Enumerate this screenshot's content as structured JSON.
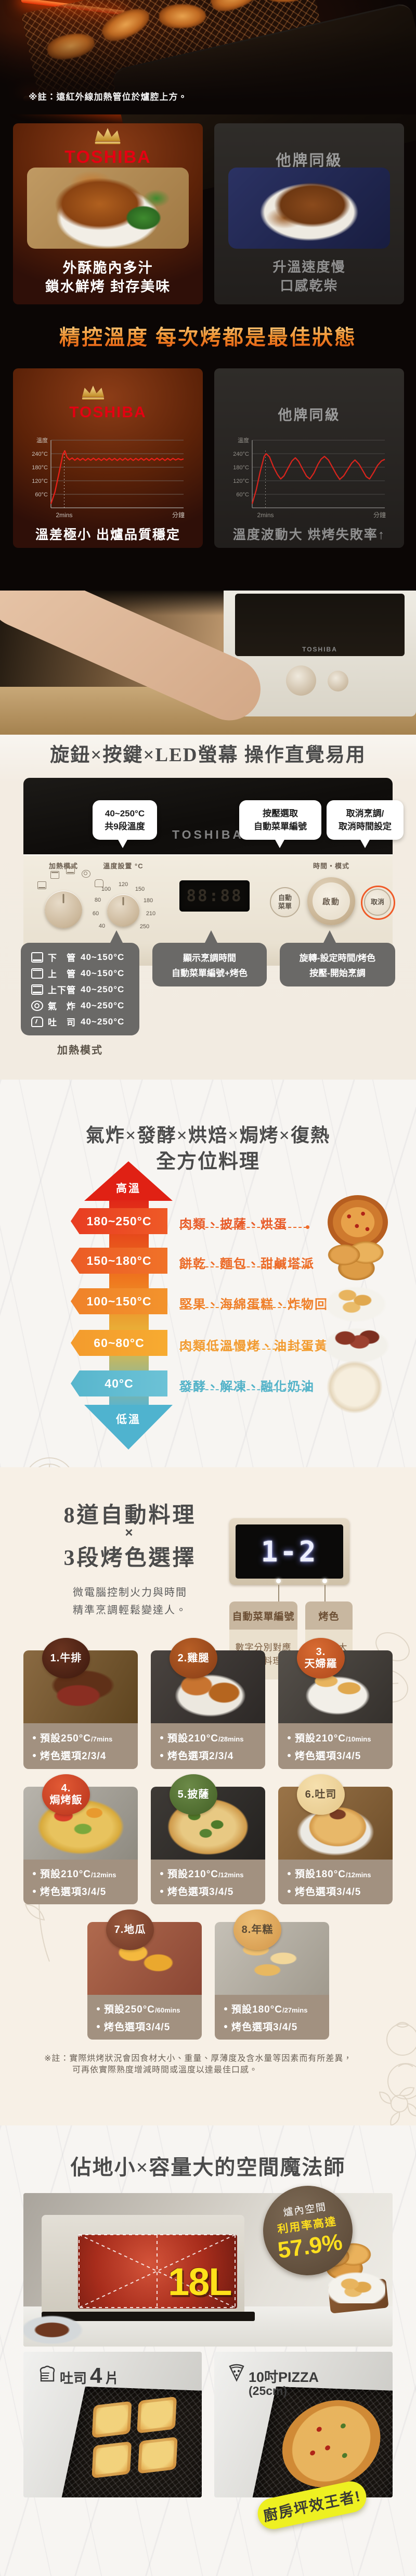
{
  "hero": {
    "note": "※註：遠紅外線加熱管位於爐腔上方。"
  },
  "compare_cook": {
    "left_brand": "TOSHIBA",
    "left_line1": "外酥脆內多汁",
    "left_line2": "鎖水鮮烤 封存美味",
    "right_brand": "他牌同級",
    "right_line1": "升溫速度慢",
    "right_line2": "口感乾柴"
  },
  "temp_heading": "精控溫度 每次烤都是最佳狀態",
  "compare_temp": {
    "left_brand": "TOSHIBA",
    "left_caption": "溫差極小 出爐品質穩定",
    "right_brand": "他牌同級",
    "right_caption": "溫度波動大 烘烤失敗率↑"
  },
  "chart_data": [
    {
      "type": "line",
      "title": "TOSHIBA爐內溫度曲線",
      "ylabel": "溫度",
      "xlabel": "分鐘",
      "x_marker": "2mins",
      "y_ticks": [
        240,
        180,
        120,
        60
      ],
      "ylim": [
        0,
        300
      ],
      "xlim": [
        0,
        20
      ],
      "annotation": "溫差極小 出爐品質穩定",
      "series": [
        {
          "name": "爐內溫度",
          "color": "#e82019",
          "points": [
            [
              0,
              18
            ],
            [
              0.6,
              70
            ],
            [
              1.2,
              152
            ],
            [
              1.8,
              238
            ],
            [
              2.1,
              253
            ],
            [
              2.4,
              226
            ],
            [
              2.8,
              213
            ],
            [
              3.2,
              221
            ],
            [
              3.6,
              211
            ],
            [
              4,
              220
            ],
            [
              4.4,
              211
            ],
            [
              4.8,
              219
            ],
            [
              5.2,
              210
            ],
            [
              5.6,
              219
            ],
            [
              6,
              211
            ],
            [
              6.4,
              220
            ],
            [
              6.8,
              211
            ],
            [
              7.2,
              219
            ],
            [
              7.6,
              210
            ],
            [
              8,
              219
            ],
            [
              8.4,
              211
            ],
            [
              8.8,
              220
            ],
            [
              9.2,
              211
            ],
            [
              9.6,
              219
            ],
            [
              10,
              210
            ],
            [
              10.4,
              219
            ],
            [
              10.8,
              211
            ],
            [
              11.2,
              220
            ],
            [
              11.6,
              211
            ],
            [
              12,
              219
            ],
            [
              12.4,
              210
            ],
            [
              12.8,
              219
            ],
            [
              13.2,
              211
            ],
            [
              13.6,
              220
            ],
            [
              14,
              211
            ],
            [
              14.4,
              219
            ],
            [
              14.8,
              210
            ],
            [
              15.2,
              219
            ],
            [
              15.6,
              211
            ],
            [
              16,
              220
            ],
            [
              16.4,
              211
            ],
            [
              16.8,
              219
            ],
            [
              17.2,
              210
            ],
            [
              17.6,
              219
            ],
            [
              18,
              211
            ],
            [
              18.4,
              219
            ],
            [
              18.8,
              212
            ],
            [
              19.2,
              218
            ],
            [
              19.6,
              213
            ],
            [
              20,
              217
            ]
          ]
        }
      ]
    },
    {
      "type": "line",
      "title": "他牌同級爐內溫度曲線",
      "ylabel": "溫度",
      "xlabel": "分鐘",
      "x_marker": "2mins",
      "y_ticks": [
        240,
        180,
        120,
        60
      ],
      "ylim": [
        0,
        300
      ],
      "xlim": [
        0,
        20
      ],
      "annotation": "溫度波動大 烘烤失敗率↑",
      "series": [
        {
          "name": "爐內溫度",
          "color": "#d8241d",
          "points": [
            [
              0,
              18
            ],
            [
              0.6,
              78
            ],
            [
              1.2,
              160
            ],
            [
              1.8,
              228
            ],
            [
              2.1,
              240
            ],
            [
              2.6,
              226
            ],
            [
              3.2,
              182
            ],
            [
              3.8,
              148
            ],
            [
              4.3,
              128
            ],
            [
              4.8,
              142
            ],
            [
              5.4,
              176
            ],
            [
              6,
              208
            ],
            [
              6.5,
              222
            ],
            [
              7,
              206
            ],
            [
              7.6,
              172
            ],
            [
              8.2,
              140
            ],
            [
              8.7,
              128
            ],
            [
              9.3,
              154
            ],
            [
              9.9,
              192
            ],
            [
              10.4,
              216
            ],
            [
              10.9,
              228
            ],
            [
              11.5,
              212
            ],
            [
              12.1,
              180
            ],
            [
              12.7,
              148
            ],
            [
              13.2,
              126
            ],
            [
              13.8,
              142
            ],
            [
              14.4,
              170
            ],
            [
              15,
              198
            ],
            [
              15.5,
              212
            ],
            [
              16.1,
              194
            ],
            [
              16.7,
              164
            ],
            [
              17.2,
              138
            ],
            [
              17.7,
              128
            ],
            [
              18.3,
              156
            ],
            [
              18.9,
              188
            ],
            [
              19.5,
              208
            ],
            [
              20,
              215
            ]
          ]
        }
      ]
    }
  ],
  "panel_section": {
    "heading": "旋鈕×按鍵×LED螢幕 操作直覺易用",
    "bubble1": [
      "40~250°C",
      "共9段溫度"
    ],
    "bubble2": [
      "按壓選取",
      "自動菜單編號"
    ],
    "bubble3": [
      "取消烹調/",
      "取消時間設定"
    ],
    "brand": "TOSHIBA",
    "knob1_label": "加熱模式",
    "knob2_label": "溫度設置 °C",
    "ticks": [
      "40",
      "60",
      "80",
      "100",
      "120",
      "150",
      "180",
      "210",
      "250"
    ],
    "display": "88:88",
    "auto1": "自動",
    "auto2": "菜單",
    "big_knob_label": "時間・模式",
    "start": "啟動",
    "cancel": "取消",
    "crumb": "▼ 集屑盤"
  },
  "mode_box": {
    "modes": [
      {
        "name": "下　管",
        "range": "40~150°C"
      },
      {
        "name": "上　管",
        "range": "40~150°C"
      },
      {
        "name": "上下管",
        "range": "40~250°C"
      },
      {
        "name": "氣　炸",
        "range": "40~250°C"
      },
      {
        "name": "吐　司",
        "range": "40~250°C"
      }
    ],
    "label": "加熱模式",
    "display_box": [
      "顯示烹調時間",
      "自動菜單編號+烤色"
    ],
    "knob_box": [
      "旋轉-設定時間/烤色",
      "按壓-開始烹調"
    ]
  },
  "range_section": {
    "heading1": "氣炸×發酵×烘焙×焗烤×復熱",
    "heading2": "全方位料理",
    "high": "高溫",
    "low": "低溫",
    "rows": [
      {
        "temp": "180~250°C",
        "desc": "肉類、披薩、烘蛋"
      },
      {
        "temp": "150~180°C",
        "desc": "餅乾、麵包、甜鹹塔派"
      },
      {
        "temp": "100~150°C",
        "desc": "堅果、海綿蛋糕、炸物回烤"
      },
      {
        "temp": "60~80°C",
        "desc": "肉類低溫慢烤、油封蛋黃"
      },
      {
        "temp": "40°C",
        "desc": "發酵、解凍、融化奶油"
      }
    ]
  },
  "auto_section": {
    "h1": "8道自動料理",
    "x": "×",
    "h2": "3段烤色選擇",
    "para1": "微電腦控制火力與時間",
    "para2": "精準烹調輕鬆變達人。",
    "display": "1-2",
    "tag1_title": "自動菜單編號",
    "tag1_body1": "數字分別對應",
    "tag1_body2": "以下料理",
    "tag2_title": "烤色",
    "tag2_body1": "數字越大",
    "tag2_body2": "烤色越深",
    "menus": [
      {
        "label1": "1.牛排",
        "label2": "",
        "preset": "預設250°C",
        "time": "/7mins",
        "opt": "烤色選項",
        "opt_val": "2/3/4"
      },
      {
        "label1": "2.雞腿",
        "label2": "",
        "preset": "預設210°C",
        "time": "/28mins",
        "opt": "烤色選項",
        "opt_val": "2/3/4"
      },
      {
        "label1": "3.",
        "label2": "天婦羅",
        "preset": "預設210°C",
        "time": "/10mins",
        "opt": "烤色選項",
        "opt_val": "3/4/5"
      },
      {
        "label1": "4.",
        "label2": "焗烤飯",
        "preset": "預設210°C",
        "time": "/12mins",
        "opt": "烤色選項",
        "opt_val": "3/4/5"
      },
      {
        "label1": "5.披薩",
        "label2": "",
        "preset": "預設210°C",
        "time": "/12mins",
        "opt": "烤色選項",
        "opt_val": "3/4/5"
      },
      {
        "label1": "6.吐司",
        "label2": "",
        "preset": "預設180°C",
        "time": "/12mins",
        "opt": "烤色選項",
        "opt_val": "3/4/5"
      },
      {
        "label1": "7.地瓜",
        "label2": "",
        "preset": "預設250°C",
        "time": "/60mins",
        "opt": "烤色選項",
        "opt_val": "3/4/5"
      },
      {
        "label1": "8.年糕",
        "label2": "",
        "preset": "預設180°C",
        "time": "/27mins",
        "opt": "烤色選項",
        "opt_val": "3/4/5"
      }
    ],
    "note1": "※註：實際烘烤狀況會因食材大小、重量、厚薄度及含水量等因素而有所差異，",
    "note2": "可再依實際熟度增減時間或溫度以達最佳口感。"
  },
  "space_section": {
    "heading": "佔地小×容量大的空間魔法師",
    "badge1": "爐內空間",
    "badge2": "利用率高達",
    "badge3": "57.9%",
    "volume": "18L",
    "card1_label": "吐司",
    "card1_count": "4",
    "card1_unit": "片",
    "card2_label": "10吋PIZZA",
    "card2_sub": "(25cm)",
    "sticker": "廚房坪效王者!"
  },
  "colors": {
    "toshiba_red": "#e50012",
    "accent_orange": "#ef6c2a",
    "teal": "#5fb4c9",
    "highlight_yellow": "#ffe11a",
    "sticker_yellow": "#eef021"
  }
}
